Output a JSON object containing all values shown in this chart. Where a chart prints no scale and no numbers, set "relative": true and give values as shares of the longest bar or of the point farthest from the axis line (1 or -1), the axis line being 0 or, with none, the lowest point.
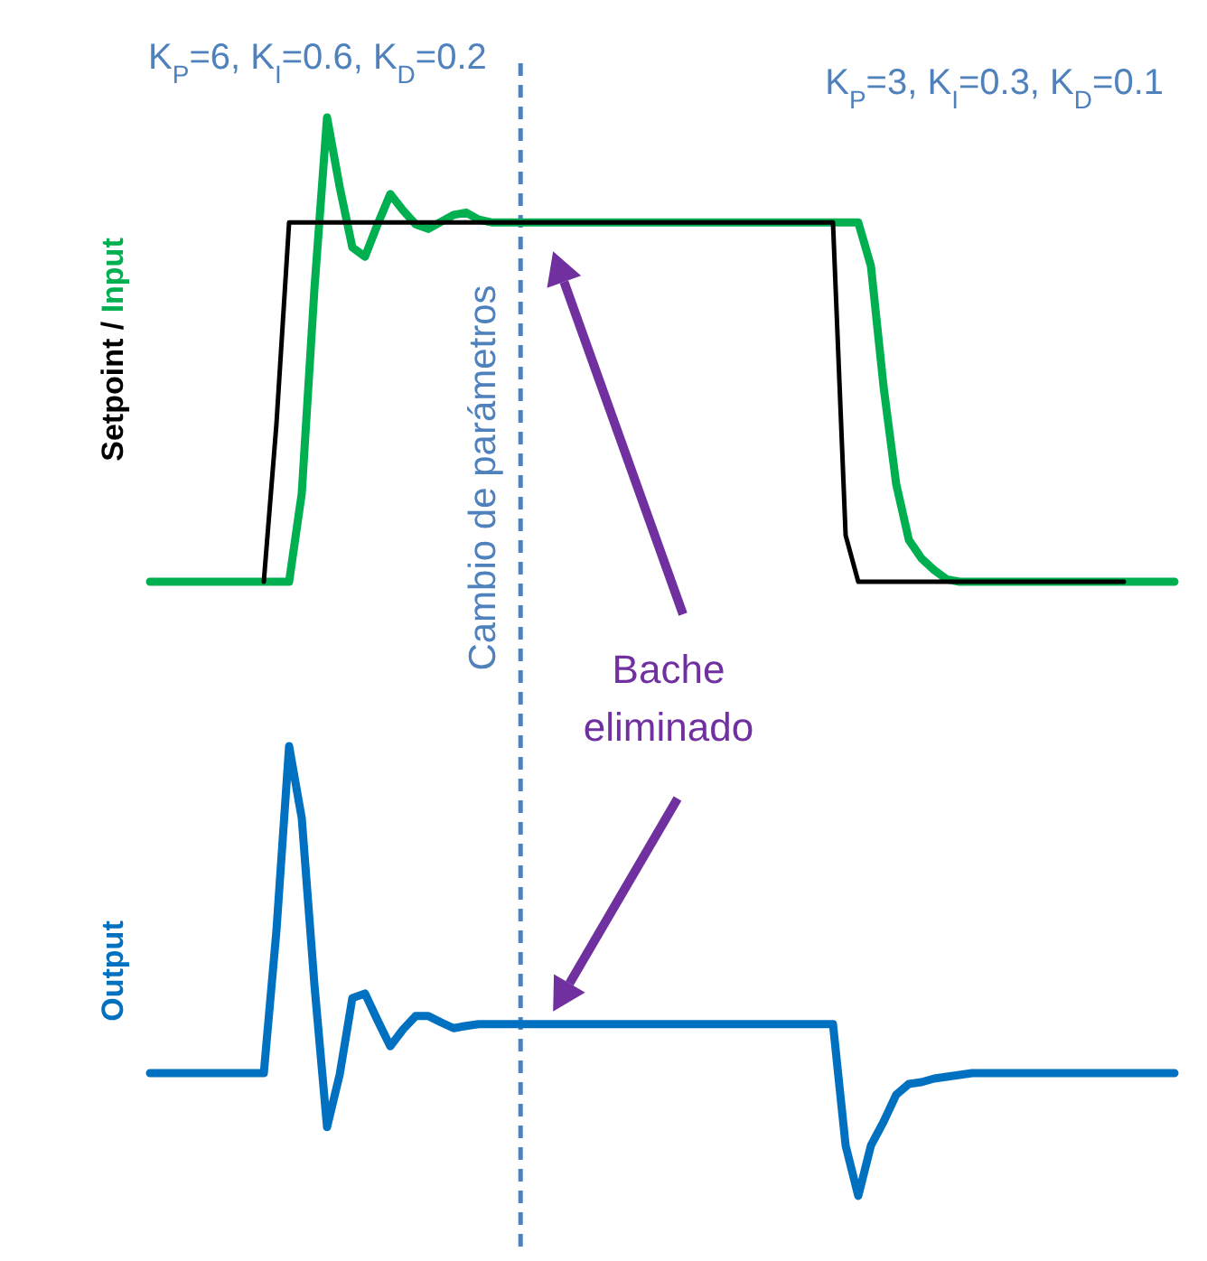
{
  "chart_data": [
    {
      "type": "line",
      "relative": true,
      "ylabel": "Setpoint / Input",
      "categories": [
        null,
        null,
        null,
        null,
        null,
        null,
        null,
        null,
        null,
        null,
        null,
        null,
        null,
        null,
        null,
        null,
        null,
        null,
        null,
        null,
        null,
        null,
        null,
        null,
        null,
        null,
        null,
        null,
        null,
        null,
        null,
        null,
        null,
        null,
        null,
        null,
        null,
        null,
        null,
        null,
        null,
        null,
        null,
        null,
        null,
        null,
        null,
        null,
        null,
        null,
        null,
        null,
        null,
        null,
        null,
        null,
        null,
        null,
        null,
        null,
        null,
        null,
        null,
        null,
        null,
        null,
        null,
        null,
        null,
        null,
        null,
        null,
        null,
        null,
        null,
        null,
        null,
        null,
        null,
        null,
        null,
        null
      ],
      "series": [
        {
          "color": "#000000",
          "values": [
            null,
            null,
            null,
            null,
            null,
            null,
            null,
            null,
            null,
            0,
            0.34,
            0.774,
            0.774,
            0.774,
            0.774,
            0.774,
            0.774,
            0.774,
            0.774,
            0.774,
            0.774,
            0.774,
            0.774,
            0.774,
            0.774,
            0.774,
            0.774,
            0.774,
            0.774,
            0.774,
            0.774,
            0.774,
            0.774,
            0.774,
            0.774,
            0.774,
            0.774,
            0.774,
            0.774,
            0.774,
            0.774,
            0.774,
            0.774,
            0.774,
            0.774,
            0.774,
            0.774,
            0.774,
            0.774,
            0.774,
            0.774,
            0.774,
            0.774,
            0.774,
            0.774,
            0.1,
            0,
            0,
            0,
            0,
            0,
            0,
            0,
            0,
            0,
            0,
            0,
            0,
            0,
            0,
            0,
            0,
            0,
            0,
            0,
            0,
            0,
            0,
            null,
            null,
            null,
            null
          ]
        },
        {
          "color": "#00b050",
          "values": [
            0,
            0,
            0,
            0,
            0,
            0,
            0,
            0,
            0,
            0,
            0,
            0,
            0.19,
            0.63,
            1.0,
            0.85,
            0.72,
            0.7,
            0.77,
            0.835,
            0.8,
            0.77,
            0.76,
            0.775,
            0.79,
            0.795,
            0.78,
            0.774,
            0.774,
            0.774,
            0.774,
            0.774,
            0.774,
            0.774,
            0.774,
            0.774,
            0.774,
            0.774,
            0.774,
            0.774,
            0.774,
            0.774,
            0.774,
            0.774,
            0.774,
            0.774,
            0.774,
            0.774,
            0.774,
            0.774,
            0.774,
            0.774,
            0.774,
            0.774,
            0.774,
            0.774,
            0.774,
            0.68,
            0.42,
            0.21,
            0.09,
            0.05,
            0.025,
            0.005,
            0,
            0,
            0,
            0,
            0,
            0,
            0,
            0,
            0,
            0,
            0,
            0,
            0,
            0,
            0,
            0,
            0,
            0
          ]
        }
      ],
      "annotations": [
        "K$_{P}$=6, K$_{I}$=0.6, K$_{D}$=0.2",
        "K$_{P}$=3, K$_{I}$=0.3, K$_{D}$=0.1",
        "Bache eliminado",
        "Cambio de parámetros"
      ]
    },
    {
      "type": "line",
      "relative": true,
      "legend": "left",
      "categories": [
        null,
        null,
        null,
        null,
        null,
        null,
        null,
        null,
        null,
        null,
        null,
        null,
        null,
        null,
        null,
        null,
        null,
        null,
        null,
        null,
        null,
        null,
        null,
        null,
        null,
        null,
        null,
        null,
        null,
        null,
        null,
        null,
        null,
        null,
        null,
        null,
        null,
        null,
        null,
        null,
        null,
        null,
        null,
        null,
        null,
        null,
        null,
        null,
        null,
        null,
        null,
        null,
        null,
        null,
        null,
        null,
        null,
        null,
        null,
        null,
        null,
        null,
        null,
        null,
        null,
        null,
        null,
        null,
        null,
        null,
        null,
        null,
        null,
        null,
        null,
        null,
        null,
        null,
        null,
        null,
        null,
        null
      ],
      "series": [
        {
          "name": "Output",
          "color": "#0070c0",
          "values": [
            0.273,
            0.273,
            0.273,
            0.273,
            0.273,
            0.273,
            0.273,
            0.273,
            0.273,
            0.273,
            0.59,
            1.0,
            0.84,
            0.47,
            0.153,
            0.27,
            0.44,
            0.45,
            0.39,
            0.333,
            0.37,
            0.4,
            0.4,
            0.386,
            0.373,
            0.378,
            0.382,
            0.382,
            0.382,
            0.382,
            0.382,
            0.382,
            0.382,
            0.382,
            0.382,
            0.382,
            0.382,
            0.382,
            0.382,
            0.382,
            0.382,
            0.382,
            0.382,
            0.382,
            0.382,
            0.382,
            0.382,
            0.382,
            0.382,
            0.382,
            0.382,
            0.382,
            0.382,
            0.382,
            0.382,
            0.112,
            0,
            0.112,
            0.165,
            0.225,
            0.249,
            0.253,
            0.261,
            0.265,
            0.269,
            0.273,
            0.273,
            0.273,
            0.273,
            0.273,
            0.273,
            0.273,
            0.273,
            0.273,
            0.273,
            0.273,
            0.273,
            0.273,
            0.273,
            0.273,
            0.273,
            0.273
          ]
        }
      ]
    }
  ]
}
